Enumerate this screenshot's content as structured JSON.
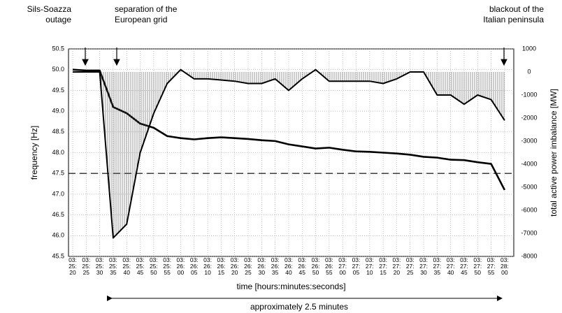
{
  "chart_data": {
    "type": "line",
    "x_label": "time [hours:minutes:seconds]",
    "y_label": "frequency [Hz]",
    "y2_label": "total active power imbalance [MW]",
    "bottom_note": "approximately 2.5 minutes",
    "annotations": [
      [
        "Sils-Soazza",
        "outage"
      ],
      [
        "separation of the",
        "European grid"
      ],
      [
        "blackout of the",
        "Italian peninsula"
      ]
    ],
    "categories": [
      "03: 25: 20",
      "03: 25: 25",
      "03: 25: 30",
      "03: 25: 35",
      "03: 25: 40",
      "03: 25: 45",
      "03: 25: 50",
      "03: 25: 55",
      "03: 26: 00",
      "03: 26: 05",
      "03: 26: 10",
      "03: 26: 15",
      "03: 26: 20",
      "03: 26: 25",
      "03: 26: 30",
      "03: 26: 35",
      "03: 26: 40",
      "03: 26: 45",
      "03: 26: 50",
      "03: 26: 55",
      "03: 27: 00",
      "03: 27: 05",
      "03: 27: 10",
      "03: 27: 15",
      "03: 27: 20",
      "03: 27: 25",
      "03: 27: 30",
      "03: 27: 35",
      "03: 27: 40",
      "03: 27: 45",
      "03: 27: 50",
      "03: 27: 55",
      "03: 28: 00"
    ],
    "series": [
      {
        "color": "#000000",
        "values": [
          50.0,
          49.98,
          49.98,
          49.1,
          48.95,
          48.7,
          48.6,
          48.4,
          48.35,
          48.32,
          48.35,
          48.37,
          48.35,
          48.33,
          48.3,
          48.28,
          48.2,
          48.15,
          48.1,
          48.12,
          48.07,
          48.03,
          48.02,
          48.0,
          47.98,
          47.95,
          47.9,
          47.88,
          47.83,
          47.82,
          47.77,
          47.73,
          47.1
        ]
      },
      {
        "color": "#000000",
        "axis": "y2",
        "values": [
          0,
          0,
          0,
          -7200,
          -6600,
          -3500,
          -1800,
          -500,
          100,
          -300,
          -300,
          -350,
          -400,
          -500,
          -500,
          -300,
          -800,
          -300,
          100,
          -400,
          -400,
          -400,
          -400,
          -500,
          -300,
          0,
          0,
          -1000,
          -1000,
          -1400,
          -1000,
          -1200,
          -2100
        ]
      }
    ],
    "reference_line": 47.5,
    "ylim": [
      45.5,
      50.5
    ],
    "yticks": [
      45.5,
      {
        "value": 46,
        "label": "46.0"
      },
      46.5,
      {
        "value": 47,
        "label": "47.0"
      },
      47.5,
      {
        "value": 48,
        "label": "48.0"
      },
      48.5,
      {
        "value": 49,
        "label": "49.0"
      },
      49.5,
      {
        "value": 50,
        "label": "50.0"
      },
      50.5
    ],
    "y2lim": [
      -8000,
      1000
    ],
    "y2ticks": [
      -8000,
      -7000,
      -6000,
      -5000,
      -4000,
      -3000,
      -2000,
      -1000,
      0,
      1000
    ],
    "grid": true
  }
}
